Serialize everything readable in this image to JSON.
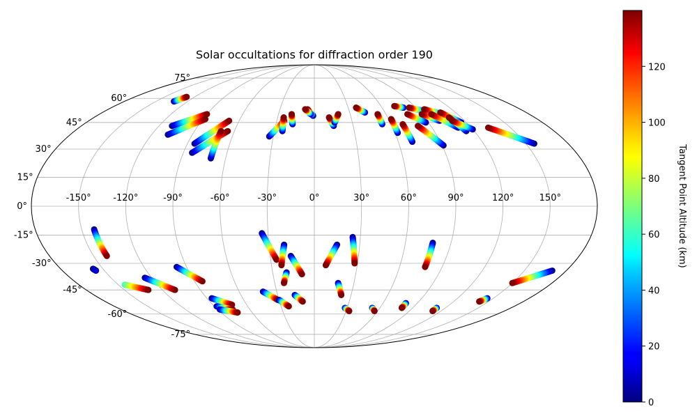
{
  "chart_data": {
    "type": "scatter",
    "projection": "mollweide",
    "title": "Solar occultations for diffraction order 190",
    "grid": true,
    "lon_ticks": [
      "-150°",
      "-120°",
      "-90°",
      "-60°",
      "-30°",
      "0°",
      "30°",
      "60°",
      "90°",
      "120°",
      "150°"
    ],
    "lon_tick_values": [
      -150,
      -120,
      -90,
      -60,
      -30,
      0,
      30,
      60,
      90,
      120,
      150
    ],
    "lat_ticks": [
      "-75°",
      "-60°",
      "-45°",
      "-30°",
      "-15°",
      "0°",
      "15°",
      "30°",
      "45°",
      "60°",
      "75°"
    ],
    "lat_tick_values": [
      -75,
      -60,
      -45,
      -30,
      -15,
      0,
      15,
      30,
      45,
      60,
      75
    ],
    "colorbar": {
      "label": "Tangent Point Altitude (km)",
      "colormap": "jet",
      "range": [
        0,
        140
      ],
      "ticks": [
        "0",
        "20",
        "40",
        "60",
        "80",
        "100",
        "120"
      ],
      "tick_values": [
        0,
        20,
        40,
        60,
        80,
        100,
        120
      ]
    },
    "tracks": [
      {
        "lon0": -133,
        "lat0": 58,
        "lon1": -128,
        "lat1": 61,
        "alt0": 0,
        "alt1": 140
      },
      {
        "lon0": -110,
        "lat0": 43,
        "lon1": -90,
        "lat1": 50,
        "alt0": 0,
        "alt1": 140
      },
      {
        "lon0": -108,
        "lat0": 38,
        "lon1": -88,
        "lat1": 47,
        "alt0": 0,
        "alt1": 140
      },
      {
        "lon0": -85,
        "lat0": 33,
        "lon1": -68,
        "lat1": 46,
        "alt0": 0,
        "alt1": 140
      },
      {
        "lon0": -84,
        "lat0": 28,
        "lon1": -65,
        "lat1": 40,
        "alt0": 0,
        "alt1": 140
      },
      {
        "lon0": -70,
        "lat0": 25,
        "lon1": -70,
        "lat1": 40,
        "alt0": 0,
        "alt1": 140
      },
      {
        "lon0": -33,
        "lat0": 37,
        "lon1": -24,
        "lat1": 46,
        "alt0": 0,
        "alt1": 140
      },
      {
        "lon0": -24,
        "lat0": 40,
        "lon1": -25,
        "lat1": 48,
        "alt0": 0,
        "alt1": 140
      },
      {
        "lon0": -17,
        "lat0": 44,
        "lon1": -19,
        "lat1": 50,
        "alt0": 0,
        "alt1": 140
      },
      {
        "lon0": -1,
        "lat0": 49,
        "lon1": -6,
        "lat1": 53,
        "alt0": 0,
        "alt1": 140
      },
      {
        "lon0": -3,
        "lat0": 50,
        "lon1": -8,
        "lat1": 53,
        "alt0": 0,
        "alt1": 140
      },
      {
        "lon0": 15,
        "lat0": 43,
        "lon1": 12,
        "lat1": 48,
        "alt0": 0,
        "alt1": 140
      },
      {
        "lon0": 16,
        "lat0": 45,
        "lon1": 20,
        "lat1": 50,
        "alt0": 0,
        "alt1": 140
      },
      {
        "lon0": 43,
        "lat0": 51,
        "lon1": 37,
        "lat1": 54,
        "alt0": 0,
        "alt1": 140
      },
      {
        "lon0": 53,
        "lat0": 44,
        "lon1": 53,
        "lat1": 50,
        "alt0": 0,
        "alt1": 140
      },
      {
        "lon0": 62,
        "lat0": 39,
        "lon1": 62,
        "lat1": 47,
        "alt0": 0,
        "alt1": 140
      },
      {
        "lon0": 70,
        "lat0": 34,
        "lon1": 69,
        "lat1": 44,
        "alt0": 0,
        "alt1": 140
      },
      {
        "lon0": 79,
        "lat0": 54,
        "lon1": 72,
        "lat1": 55,
        "alt0": 0,
        "alt1": 140
      },
      {
        "lon0": 91,
        "lat0": 32,
        "lon1": 80,
        "lat1": 43,
        "alt0": 0,
        "alt1": 140
      },
      {
        "lon0": 88,
        "lat0": 45,
        "lon1": 78,
        "lat1": 50,
        "alt0": 0,
        "alt1": 140
      },
      {
        "lon0": 94,
        "lat0": 52,
        "lon1": 84,
        "lat1": 54,
        "alt0": 0,
        "alt1": 140
      },
      {
        "lon0": 100,
        "lat0": 46,
        "lon1": 90,
        "lat1": 50,
        "alt0": 0,
        "alt1": 140
      },
      {
        "lon0": 107,
        "lat0": 50,
        "lon1": 96,
        "lat1": 53,
        "alt0": 0,
        "alt1": 140
      },
      {
        "lon0": 110,
        "lat0": 42,
        "lon1": 98,
        "lat1": 50,
        "alt0": 0,
        "alt1": 140
      },
      {
        "lon0": 116,
        "lat0": 45,
        "lon1": 107,
        "lat1": 51,
        "alt0": 0,
        "alt1": 140
      },
      {
        "lon0": 114,
        "lat0": 40,
        "lon1": 110,
        "lat1": 48,
        "alt0": 0,
        "alt1": 140
      },
      {
        "lon0": 120,
        "lat0": 41,
        "lon1": 110,
        "lat1": 46,
        "alt0": 0,
        "alt1": 140
      },
      {
        "lon0": 156,
        "lat0": 33,
        "lon1": 133,
        "lat1": 42,
        "alt0": 0,
        "alt1": 140
      },
      {
        "lon0": -142,
        "lat0": -12,
        "lon1": -141,
        "lat1": -26,
        "alt0": 0,
        "alt1": 140
      },
      {
        "lon0": -157,
        "lat0": -33,
        "lon1": -156,
        "lat1": -34,
        "alt0": 0,
        "alt1": 10
      },
      {
        "lon0": -145,
        "lat0": -42,
        "lon1": -131,
        "lat1": -45,
        "alt0": 60,
        "alt1": 140
      },
      {
        "lon0": -125,
        "lat0": -38,
        "lon1": -110,
        "lat1": -45,
        "alt0": 0,
        "alt1": 140
      },
      {
        "lon0": -97,
        "lat0": -32,
        "lon1": -84,
        "lat1": -40,
        "alt0": 0,
        "alt1": 140
      },
      {
        "lon0": -86,
        "lat0": -50,
        "lon1": -73,
        "lat1": -54,
        "alt0": 0,
        "alt1": 140
      },
      {
        "lon0": -88,
        "lat0": -55,
        "lon1": -76,
        "lat1": -57,
        "alt0": 0,
        "alt1": 140
      },
      {
        "lon0": -88,
        "lat0": -57,
        "lon1": -74,
        "lat1": -59,
        "alt0": 0,
        "alt1": 140
      },
      {
        "lon0": -34,
        "lat0": -14,
        "lon1": -26,
        "lat1": -28,
        "alt0": 0,
        "alt1": 140
      },
      {
        "lon0": -20,
        "lat0": -20,
        "lon1": -23,
        "lat1": -31,
        "alt0": 0,
        "alt1": 140
      },
      {
        "lon0": -16,
        "lat0": -26,
        "lon1": -9,
        "lat1": -36,
        "alt0": 0,
        "alt1": 140
      },
      {
        "lon0": -20,
        "lat0": -35,
        "lon1": -23,
        "lat1": -41,
        "alt0": 0,
        "alt1": 140
      },
      {
        "lon0": -41,
        "lat0": -46,
        "lon1": -31,
        "lat1": -51,
        "alt0": 0,
        "alt1": 140
      },
      {
        "lon0": -30,
        "lat0": -51,
        "lon1": -23,
        "lat1": -55,
        "alt0": 0,
        "alt1": 140
      },
      {
        "lon0": -16,
        "lat0": -48,
        "lon1": -10,
        "lat1": -52,
        "alt0": 0,
        "alt1": 140
      },
      {
        "lon0": 15,
        "lat0": -20,
        "lon1": 8,
        "lat1": -31,
        "alt0": 0,
        "alt1": 140
      },
      {
        "lon0": 25,
        "lat0": -16,
        "lon1": 28,
        "lat1": -30,
        "alt0": 0,
        "alt1": 140
      },
      {
        "lon0": 18,
        "lat0": -41,
        "lon1": 22,
        "lat1": -48,
        "alt0": 0,
        "alt1": 140
      },
      {
        "lon0": 28,
        "lat0": -56,
        "lon1": 33,
        "lat1": -58,
        "alt0": 0,
        "alt1": 140
      },
      {
        "lon0": 53,
        "lat0": -56,
        "lon1": 57,
        "lat1": -58,
        "alt0": 0,
        "alt1": 140
      },
      {
        "lon0": 80,
        "lat0": -53,
        "lon1": 80,
        "lat1": -56,
        "alt0": 0,
        "alt1": 140
      },
      {
        "lon0": 78,
        "lat0": -19,
        "lon1": 78,
        "lat1": -32,
        "alt0": 0,
        "alt1": 140
      },
      {
        "lon0": 112,
        "lat0": -56,
        "lon1": 112,
        "lat1": -58,
        "alt0": 0,
        "alt1": 140
      },
      {
        "lon0": 145,
        "lat0": -50,
        "lon1": 142,
        "lat1": -52,
        "alt0": 0,
        "alt1": 140
      },
      {
        "lon0": 170,
        "lat0": -34,
        "lon1": 150,
        "lat1": -41,
        "alt0": 0,
        "alt1": 140
      }
    ]
  }
}
